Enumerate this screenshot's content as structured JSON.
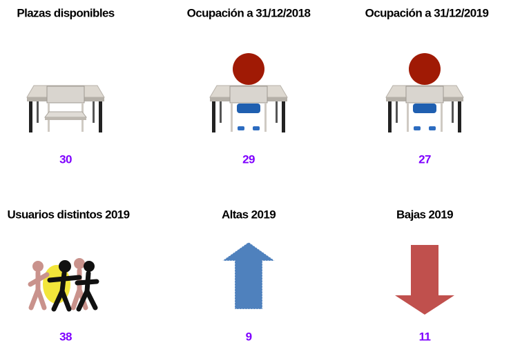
{
  "items": [
    {
      "title": "Plazas disponibles",
      "value": 30
    },
    {
      "title": "Ocupación a 31/12/2018",
      "value": 29
    },
    {
      "title": "Ocupación a 31/12/2019",
      "value": 27
    },
    {
      "title": "Usuarios distintos 2019",
      "value": 38
    },
    {
      "title": "Altas 2019",
      "value": 9
    },
    {
      "title": "Bajas 2019",
      "value": 11
    }
  ]
}
